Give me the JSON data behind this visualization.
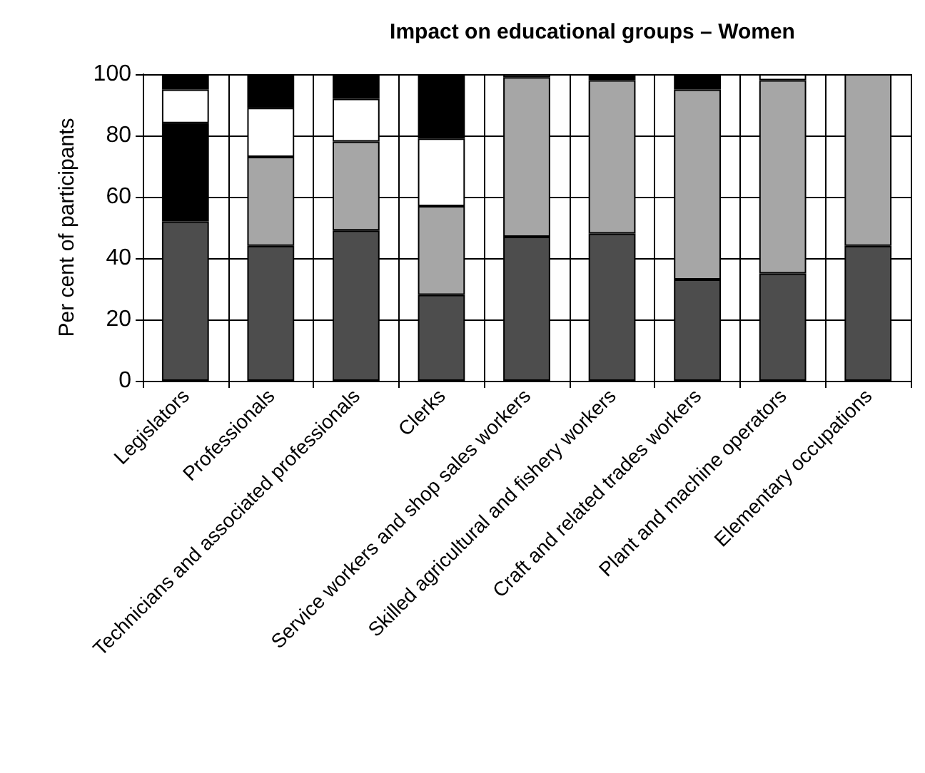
{
  "chart_data": {
    "type": "bar",
    "title": "Impact on educational groups – Women",
    "ylabel": "Per cent of participants",
    "categories": [
      "Legislators",
      "Professionals",
      "Technicians and associated professionals",
      "Clerks",
      "Service workers and shop sales workers",
      "Skilled agricultural and fishery workers",
      "Craft and related trades workers",
      "Plant and machine operators",
      "Elementary occupations"
    ],
    "stacked": true,
    "ylim": [
      0,
      100
    ],
    "yticks": [
      0,
      20,
      40,
      60,
      80,
      100
    ],
    "grid": true,
    "series": [
      {
        "color": "#4d4d4d",
        "values": [
          52,
          44,
          49,
          28,
          47,
          48,
          33,
          35,
          44
        ]
      },
      {
        "color": "#a6a6a6",
        "values": [
          null,
          29,
          29,
          29,
          52,
          50,
          62,
          63,
          56
        ]
      },
      {
        "color": "#000000",
        "values": [
          32,
          null,
          null,
          null,
          null,
          null,
          null,
          null,
          null
        ]
      },
      {
        "color": "#ffffff",
        "values": [
          11,
          16,
          14,
          22,
          1,
          null,
          null,
          2,
          null
        ]
      },
      {
        "color": "#000000",
        "values": [
          5,
          11,
          8,
          21,
          null,
          2,
          5,
          null,
          null
        ]
      }
    ]
  }
}
